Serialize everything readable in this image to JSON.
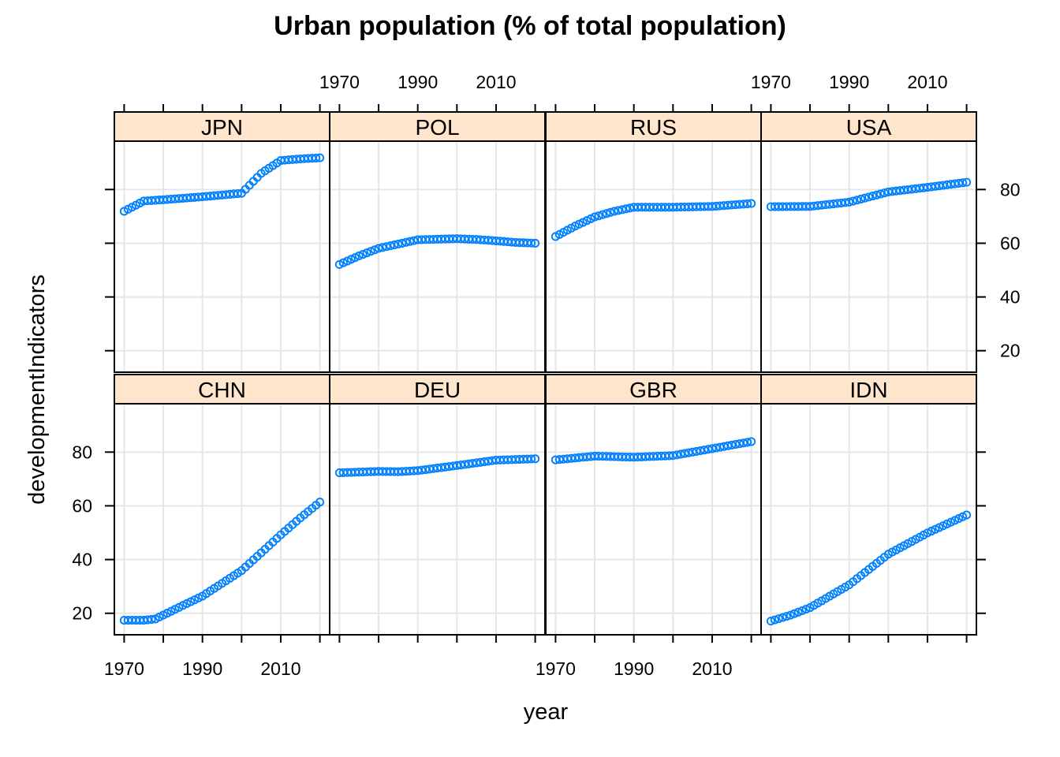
{
  "chart_data": {
    "type": "scatter",
    "title": "Urban population (% of total population)",
    "xlabel": "year",
    "ylabel": "developmentIndicators",
    "xlim": [
      1967.5,
      2022.5
    ],
    "ylim": [
      12,
      98
    ],
    "x_ticks": [
      1970,
      1980,
      1990,
      2000,
      2010,
      2020
    ],
    "x_tick_labels": [
      "1970",
      "1990",
      "2010"
    ],
    "y_ticks": [
      20,
      40,
      60,
      80
    ],
    "y_tick_labels": [
      "20",
      "40",
      "60",
      "80"
    ],
    "layout": "4 columns x 2 rows, shared axes",
    "grid": true,
    "point_shape": "open circle",
    "point_color": "#0080ff",
    "strip_color": "#ffe5cc",
    "panels": [
      {
        "name": "JPN",
        "keys": [
          [
            1970,
            71.9
          ],
          [
            1975,
            75.7
          ],
          [
            1980,
            76.2
          ],
          [
            1990,
            77.3
          ],
          [
            2000,
            78.6
          ],
          [
            2005,
            86.0
          ],
          [
            2010,
            90.8
          ],
          [
            2015,
            91.4
          ],
          [
            2020,
            91.8
          ]
        ]
      },
      {
        "name": "POL",
        "keys": [
          [
            1970,
            52.1
          ],
          [
            1975,
            55.3
          ],
          [
            1980,
            58.1
          ],
          [
            1990,
            61.3
          ],
          [
            2000,
            61.7
          ],
          [
            2005,
            61.4
          ],
          [
            2010,
            60.9
          ],
          [
            2015,
            60.3
          ],
          [
            2020,
            60.0
          ]
        ]
      },
      {
        "name": "RUS",
        "keys": [
          [
            1970,
            62.5
          ],
          [
            1975,
            66.4
          ],
          [
            1980,
            69.8
          ],
          [
            1985,
            71.9
          ],
          [
            1990,
            73.4
          ],
          [
            2000,
            73.4
          ],
          [
            2010,
            73.7
          ],
          [
            2020,
            74.8
          ]
        ]
      },
      {
        "name": "USA",
        "keys": [
          [
            1970,
            73.6
          ],
          [
            1980,
            73.7
          ],
          [
            1990,
            75.3
          ],
          [
            2000,
            79.1
          ],
          [
            2010,
            80.8
          ],
          [
            2020,
            82.7
          ]
        ]
      },
      {
        "name": "CHN",
        "keys": [
          [
            1970,
            17.4
          ],
          [
            1975,
            17.4
          ],
          [
            1978,
            17.9
          ],
          [
            1985,
            22.9
          ],
          [
            1990,
            26.4
          ],
          [
            2000,
            35.9
          ],
          [
            2005,
            42.5
          ],
          [
            2010,
            49.2
          ],
          [
            2015,
            55.5
          ],
          [
            2020,
            61.4
          ]
        ]
      },
      {
        "name": "DEU",
        "keys": [
          [
            1970,
            72.3
          ],
          [
            1980,
            72.8
          ],
          [
            1985,
            72.7
          ],
          [
            1990,
            73.1
          ],
          [
            2000,
            75.0
          ],
          [
            2010,
            77.0
          ],
          [
            2020,
            77.5
          ]
        ]
      },
      {
        "name": "GBR",
        "keys": [
          [
            1970,
            77.1
          ],
          [
            1980,
            78.5
          ],
          [
            1990,
            78.1
          ],
          [
            2000,
            78.7
          ],
          [
            2010,
            81.3
          ],
          [
            2020,
            83.9
          ]
        ]
      },
      {
        "name": "IDN",
        "keys": [
          [
            1970,
            17.1
          ],
          [
            1975,
            19.3
          ],
          [
            1980,
            22.1
          ],
          [
            1990,
            30.6
          ],
          [
            2000,
            42.0
          ],
          [
            2010,
            49.9
          ],
          [
            2020,
            56.6
          ]
        ]
      }
    ]
  }
}
